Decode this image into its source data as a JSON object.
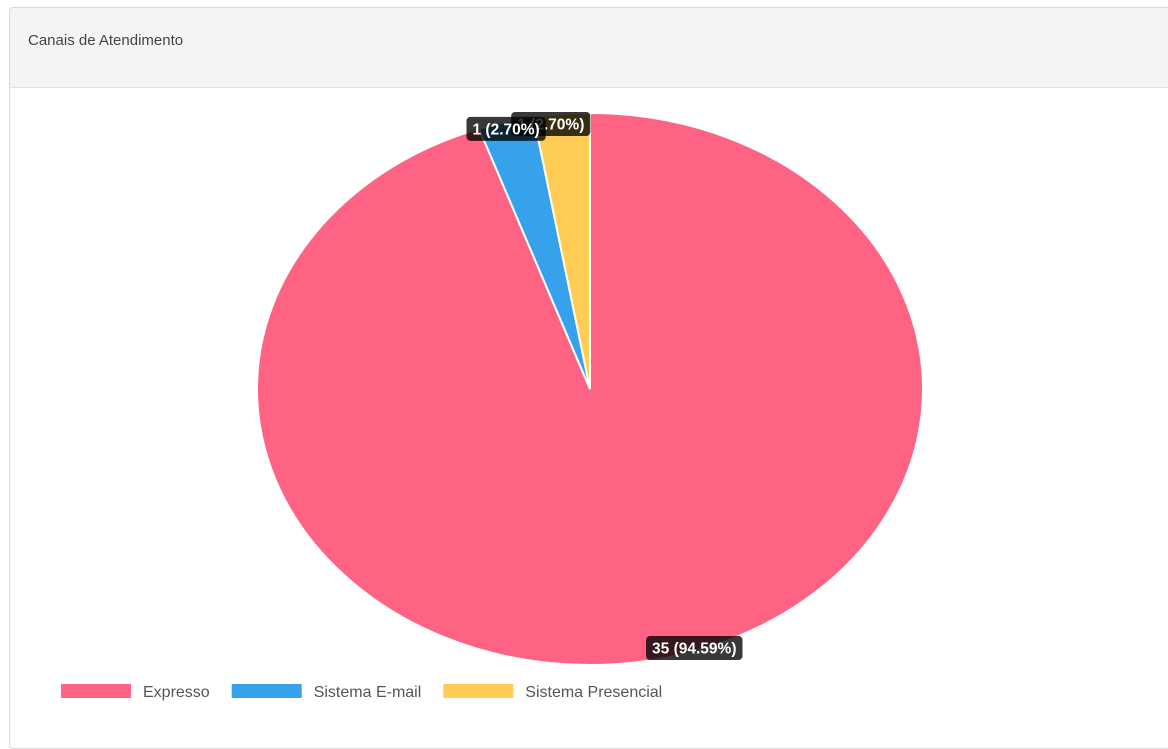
{
  "panel": {
    "title": "Canais de Atendimento"
  },
  "chart_data": {
    "type": "pie",
    "title": "",
    "slices": [
      {
        "label": "Expresso",
        "value": 35,
        "percent": "94.59%",
        "color": "#ff6384"
      },
      {
        "label": "Sistema E-mail",
        "value": 1,
        "percent": "2.70%",
        "color": "#36a2eb"
      },
      {
        "label": "Sistema Presencial",
        "value": 1,
        "percent": "2.70%",
        "color": "#ffcd56"
      }
    ],
    "data_labels": [
      "35 (94.59%)",
      "1 (2.70%)",
      "1 (2.70%)"
    ],
    "legend_position": "bottom-left",
    "start_angle": "top",
    "direction": "clockwise"
  }
}
